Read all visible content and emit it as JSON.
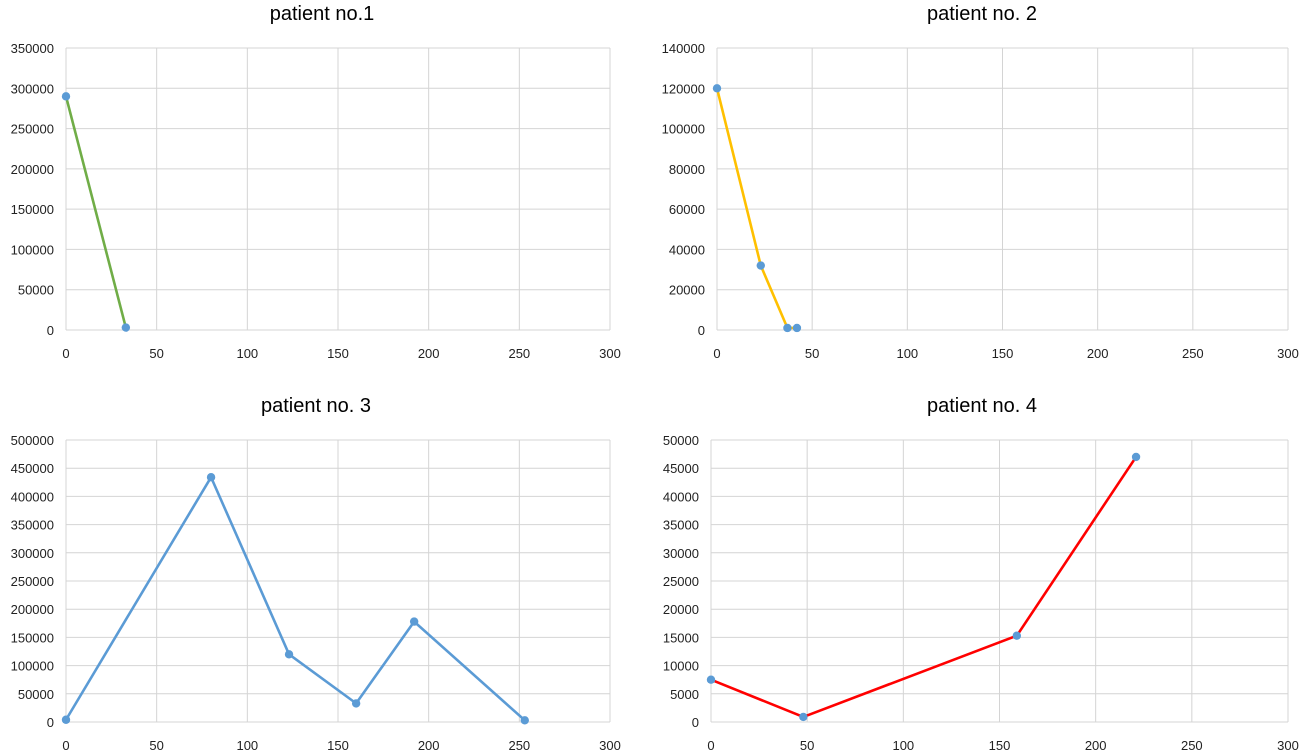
{
  "chart_data": [
    {
      "type": "line",
      "title": "patient no.1",
      "xlabel": "",
      "ylabel": "",
      "xlim": [
        0,
        300
      ],
      "ylim": [
        0,
        350000
      ],
      "xticks": [
        0,
        50,
        100,
        150,
        200,
        250,
        300
      ],
      "yticks": [
        0,
        50000,
        100000,
        150000,
        200000,
        250000,
        300000,
        350000
      ],
      "grid": true,
      "series": [
        {
          "line_color": "#70AD47",
          "marker_color": "#5B9BD5",
          "x": [
            0,
            33
          ],
          "y": [
            290000,
            3000
          ]
        }
      ]
    },
    {
      "type": "line",
      "title": "patient no. 2",
      "xlabel": "",
      "ylabel": "",
      "xlim": [
        0,
        300
      ],
      "ylim": [
        0,
        140000
      ],
      "xticks": [
        0,
        50,
        100,
        150,
        200,
        250,
        300
      ],
      "yticks": [
        0,
        20000,
        40000,
        60000,
        80000,
        100000,
        120000,
        140000
      ],
      "grid": true,
      "series": [
        {
          "line_color": "#FFC000",
          "marker_color": "#5B9BD5",
          "x": [
            0,
            23,
            37,
            42
          ],
          "y": [
            120000,
            32000,
            1000,
            1000
          ]
        }
      ]
    },
    {
      "type": "line",
      "title": "patient no. 3",
      "xlabel": "",
      "ylabel": "",
      "xlim": [
        0,
        300
      ],
      "ylim": [
        0,
        500000
      ],
      "xticks": [
        0,
        50,
        100,
        150,
        200,
        250,
        300
      ],
      "yticks": [
        0,
        50000,
        100000,
        150000,
        200000,
        250000,
        300000,
        350000,
        400000,
        450000,
        500000
      ],
      "grid": true,
      "series": [
        {
          "line_color": "#5B9BD5",
          "marker_color": "#5B9BD5",
          "x": [
            0,
            80,
            123,
            160,
            192,
            253
          ],
          "y": [
            4000,
            434000,
            120000,
            33000,
            178000,
            3000
          ]
        }
      ]
    },
    {
      "type": "line",
      "title": "patient no. 4",
      "xlabel": "",
      "ylabel": "",
      "xlim": [
        0,
        300
      ],
      "ylim": [
        0,
        50000
      ],
      "xticks": [
        0,
        50,
        100,
        150,
        200,
        250,
        300
      ],
      "yticks": [
        0,
        5000,
        10000,
        15000,
        20000,
        25000,
        30000,
        35000,
        40000,
        45000,
        50000
      ],
      "grid": true,
      "series": [
        {
          "line_color": "#FF0000",
          "marker_color": "#5B9BD5",
          "x": [
            0,
            48,
            159,
            221
          ],
          "y": [
            7500,
            900,
            15300,
            47000
          ]
        }
      ]
    }
  ]
}
